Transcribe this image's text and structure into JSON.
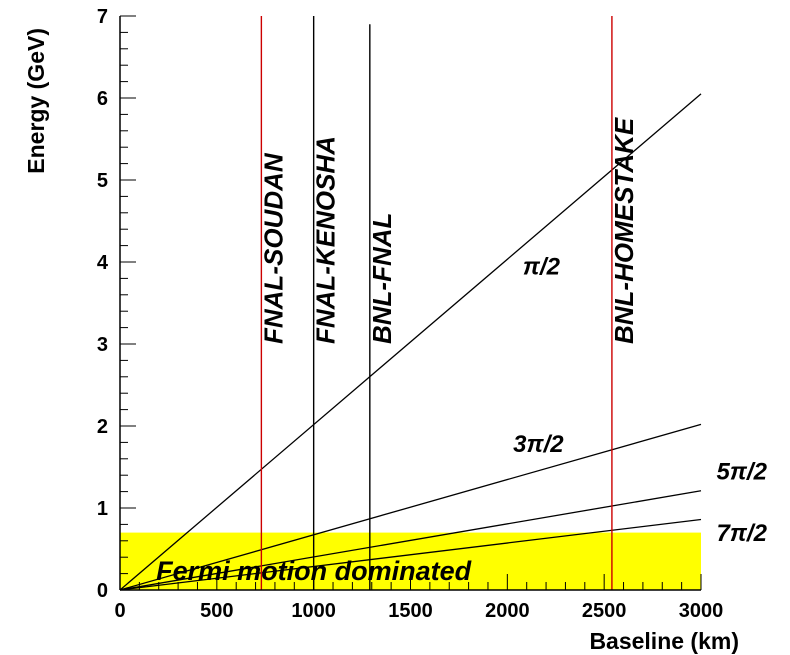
{
  "chart_data": {
    "type": "line",
    "xlabel": "Baseline  (km)",
    "ylabel": "Energy  (GeV)",
    "xlim": [
      0,
      3000
    ],
    "ylim": [
      0,
      7
    ],
    "x_ticks": [
      "0",
      "500",
      "1000",
      "1500",
      "2000",
      "2500",
      "3000"
    ],
    "y_ticks": [
      "0",
      "1",
      "2",
      "3",
      "4",
      "5",
      "6",
      "7"
    ],
    "grid": false,
    "series": [
      {
        "name": "π/2",
        "x": [
          0,
          3000
        ],
        "y": [
          0,
          6.05
        ],
        "color": "#000000"
      },
      {
        "name": "3π/2",
        "x": [
          0,
          3000
        ],
        "y": [
          0,
          2.02
        ],
        "color": "#000000"
      },
      {
        "name": "5π/2",
        "x": [
          0,
          3000
        ],
        "y": [
          0,
          1.21
        ],
        "color": "#000000"
      },
      {
        "name": "7π/2",
        "x": [
          0,
          3000
        ],
        "y": [
          0,
          0.86
        ],
        "color": "#000000"
      }
    ],
    "experiments": [
      {
        "name": "FNAL-SOUDAN",
        "baseline": 730,
        "color": "#cc0000"
      },
      {
        "name": "FNAL-KENOSHA",
        "baseline": 1000,
        "color": "#000000"
      },
      {
        "name": "BNL-FNAL",
        "baseline": 1290,
        "color": "#000000"
      },
      {
        "name": "BNL-HOMESTAKE",
        "baseline": 2540,
        "color": "#cc0000"
      }
    ],
    "region": {
      "label": "Fermi  motion  dominated",
      "y_max": 0.7,
      "color": "#ffff00"
    }
  }
}
